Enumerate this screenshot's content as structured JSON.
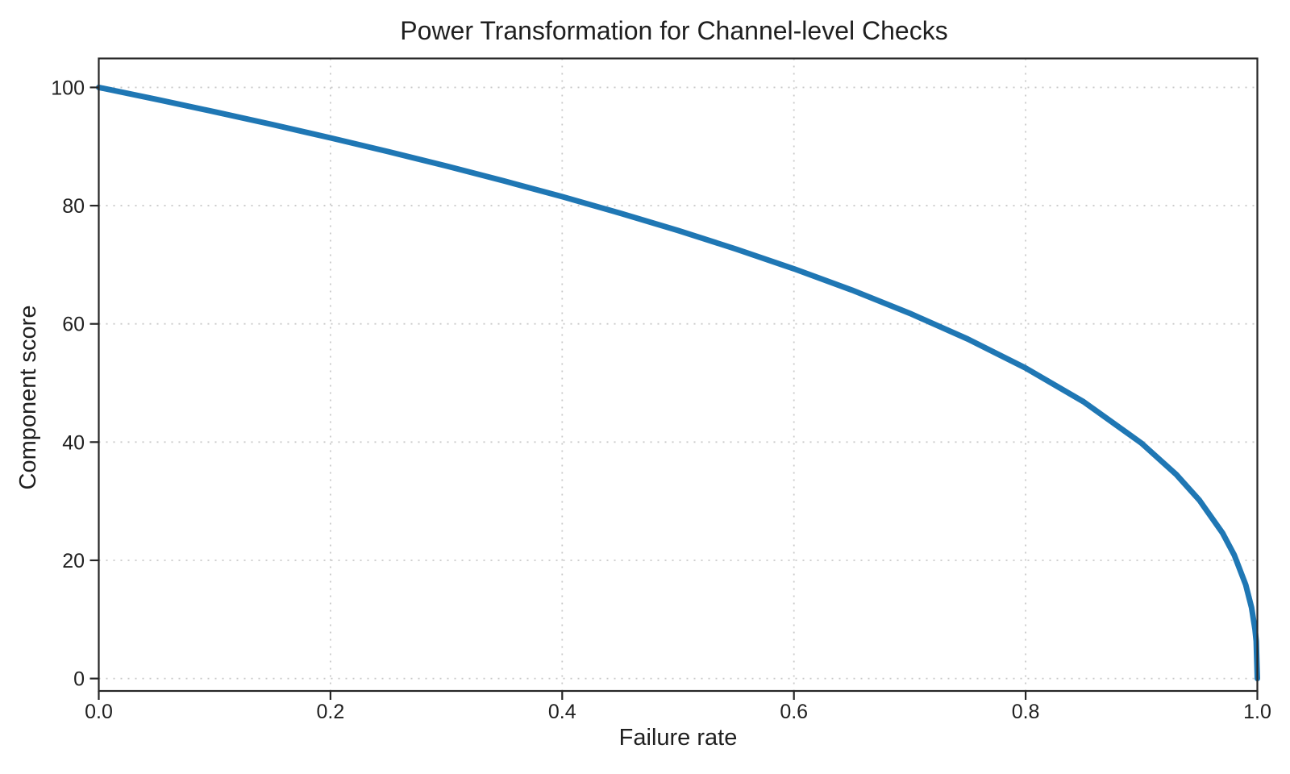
{
  "chart_data": {
    "type": "line",
    "title": "Power Transformation for Channel-level Checks",
    "xlabel": "Failure rate",
    "ylabel": "Component score",
    "xlim": [
      0.0,
      1.0
    ],
    "ylim": [
      -2.1,
      104.9
    ],
    "xticks": {
      "values": [
        0.0,
        0.2,
        0.4,
        0.6,
        0.8,
        1.0
      ],
      "labels": [
        "0.0",
        "0.2",
        "0.4",
        "0.6",
        "0.8",
        "1.0"
      ]
    },
    "yticks": {
      "values": [
        0,
        20,
        40,
        60,
        80,
        100
      ],
      "labels": [
        "0",
        "20",
        "40",
        "60",
        "80",
        "100"
      ]
    },
    "grid": {
      "visible": true,
      "style": "dotted"
    },
    "legend": {
      "visible": false
    },
    "colors": {
      "line": "#1f77b4",
      "grid": "#c9c9c9",
      "spine": "#262626",
      "text": "#1f1f1f",
      "background": "#ffffff"
    },
    "series": [
      {
        "name": "component-score-vs-failure-rate",
        "color": "#1f77b4",
        "linewidth": 7,
        "points": [
          [
            0.0,
            100.0
          ],
          [
            0.05,
            97.97
          ],
          [
            0.1,
            95.87
          ],
          [
            0.15,
            93.71
          ],
          [
            0.2,
            91.46
          ],
          [
            0.25,
            89.13
          ],
          [
            0.3,
            86.7
          ],
          [
            0.35,
            84.17
          ],
          [
            0.4,
            81.52
          ],
          [
            0.45,
            78.73
          ],
          [
            0.5,
            75.79
          ],
          [
            0.55,
            72.66
          ],
          [
            0.6,
            69.31
          ],
          [
            0.65,
            65.71
          ],
          [
            0.7,
            61.78
          ],
          [
            0.75,
            57.43
          ],
          [
            0.8,
            52.53
          ],
          [
            0.85,
            46.82
          ],
          [
            0.9,
            39.81
          ],
          [
            0.93,
            34.52
          ],
          [
            0.95,
            30.17
          ],
          [
            0.97,
            24.6
          ],
          [
            0.98,
            20.91
          ],
          [
            0.99,
            15.85
          ],
          [
            0.995,
            12.01
          ],
          [
            0.998,
            8.33
          ],
          [
            0.999,
            6.31
          ],
          [
            1.0,
            0.0
          ]
        ]
      }
    ]
  }
}
